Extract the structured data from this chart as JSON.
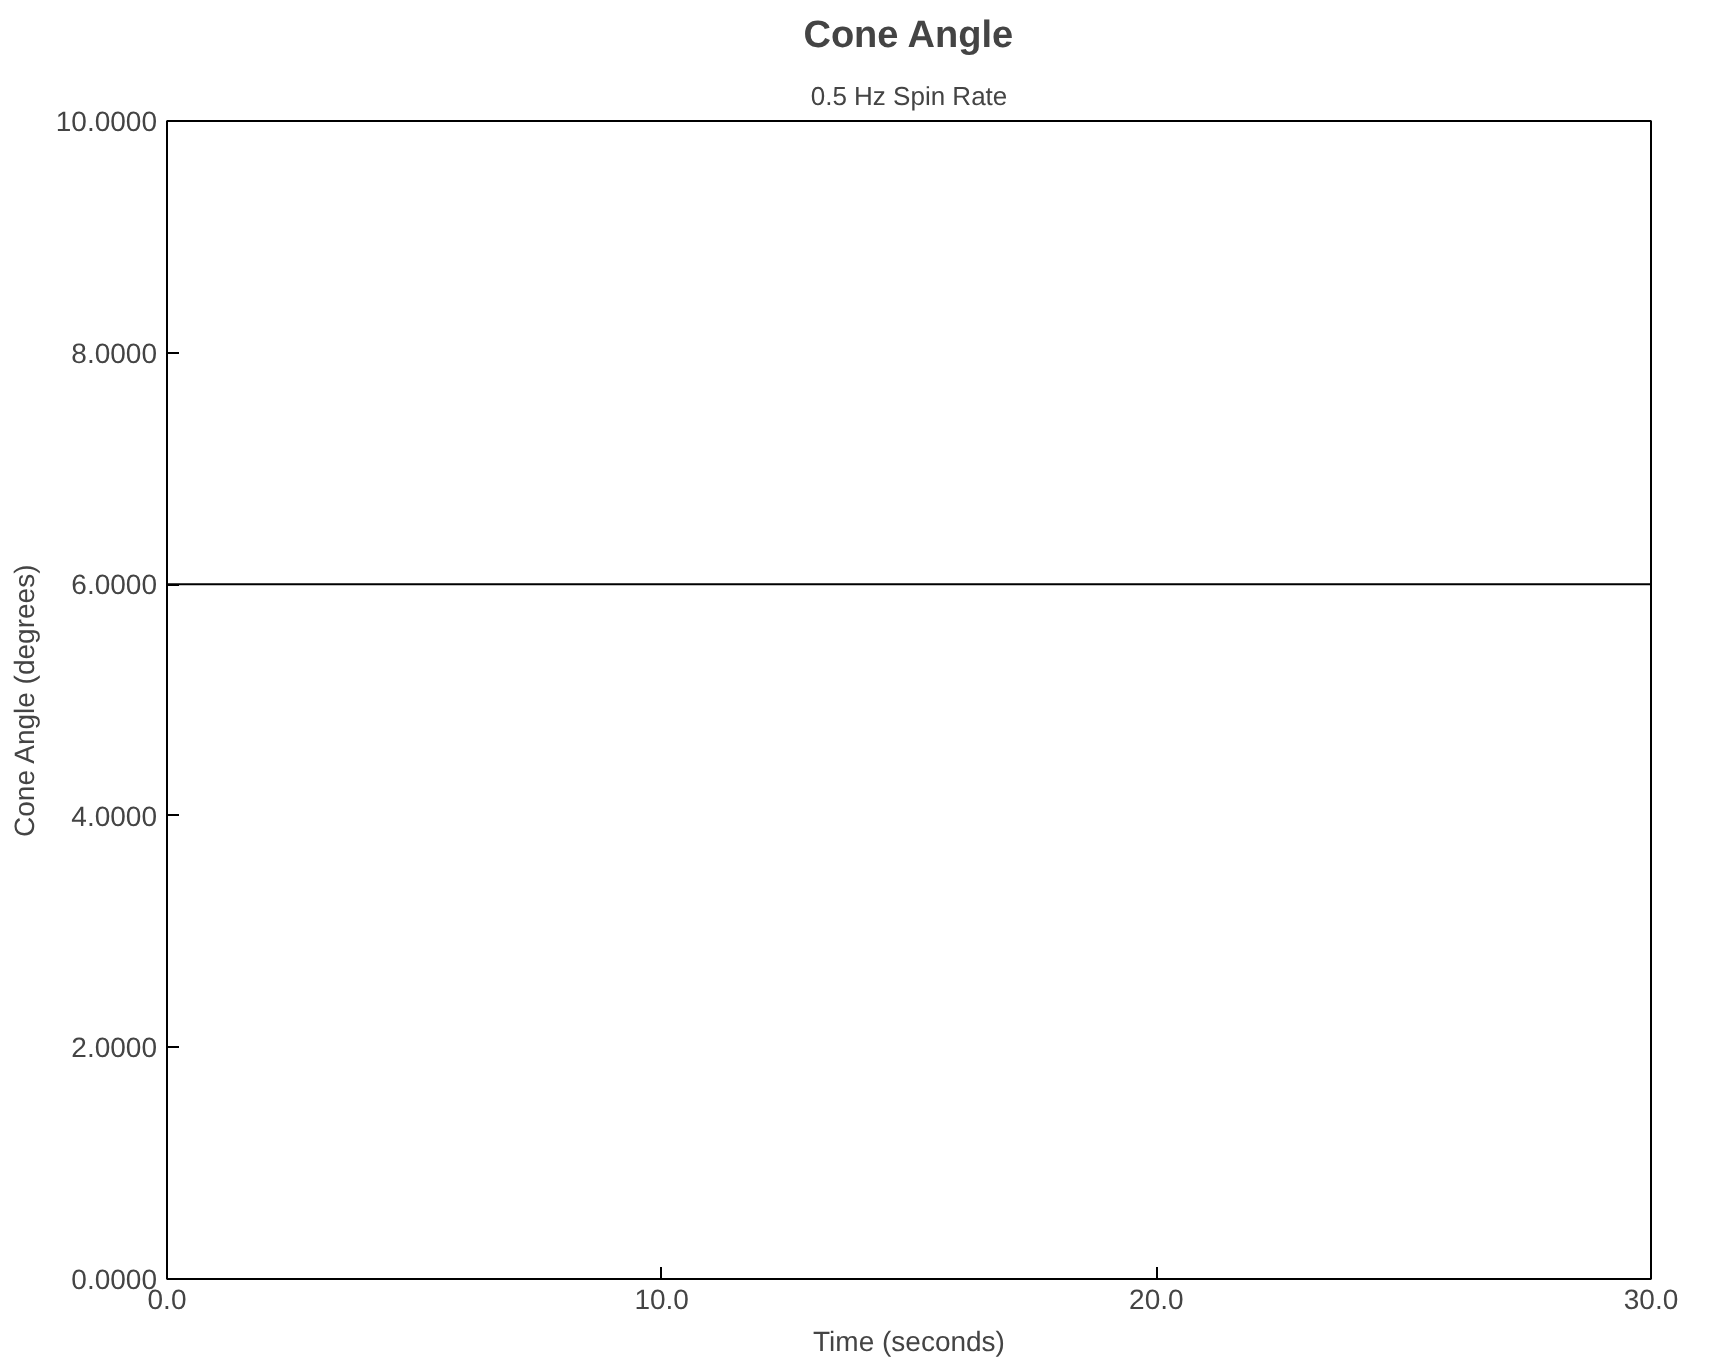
{
  "chart_data": {
    "type": "line",
    "title": "Cone Angle",
    "subtitle": "0.5 Hz Spin Rate",
    "xlabel": "Time (seconds)",
    "ylabel": "Cone Angle (degrees)",
    "x": [
      0,
      30
    ],
    "series": [
      {
        "color": "#000000",
        "values": [
          6.0,
          6.0
        ]
      }
    ],
    "xlim": [
      0,
      30
    ],
    "xticks": [
      {
        "value": 0,
        "label": "0.0"
      },
      {
        "value": 10,
        "label": "10.0"
      },
      {
        "value": 20,
        "label": "20.0"
      },
      {
        "value": 30,
        "label": "30.0"
      }
    ],
    "ylim": [
      0,
      10
    ],
    "yticks": [
      {
        "value": 0,
        "label": "0.0000"
      },
      {
        "value": 2,
        "label": "2.0000"
      },
      {
        "value": 4,
        "label": "4.0000"
      },
      {
        "value": 6,
        "label": "6.0000"
      },
      {
        "value": 8,
        "label": "8.0000"
      },
      {
        "value": 10,
        "label": "10.0000"
      }
    ],
    "grid": false,
    "marker": "none",
    "line_style": "solid"
  }
}
